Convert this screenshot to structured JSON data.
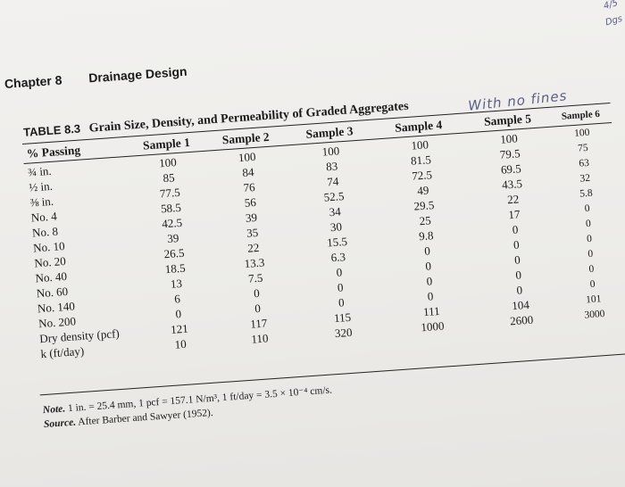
{
  "handwriting": {
    "corner_top": "4/5",
    "corner_bottom": "Dgs",
    "title_annotation": "With no fines"
  },
  "chapter": {
    "number": "Chapter 8",
    "title": "Drainage Design"
  },
  "table": {
    "label": "TABLE 8.3",
    "title": "Grain Size, Density, and Permeability of Graded Aggregates",
    "headers": [
      "% Passing",
      "Sample 1",
      "Sample 2",
      "Sample 3",
      "Sample 4",
      "Sample 5",
      "Sample 6"
    ],
    "rows": [
      [
        "¾ in.",
        "100",
        "100",
        "100",
        "100",
        "100",
        "100"
      ],
      [
        "½ in.",
        "85",
        "84",
        "83",
        "81.5",
        "79.5",
        "75"
      ],
      [
        "⅜ in.",
        "77.5",
        "76",
        "74",
        "72.5",
        "69.5",
        "63"
      ],
      [
        "No. 4",
        "58.5",
        "56",
        "52.5",
        "49",
        "43.5",
        "32"
      ],
      [
        "No. 8",
        "42.5",
        "39",
        "34",
        "29.5",
        "22",
        "5.8"
      ],
      [
        "No. 10",
        "39",
        "35",
        "30",
        "25",
        "17",
        "0"
      ],
      [
        "No. 20",
        "26.5",
        "22",
        "15.5",
        "9.8",
        "0",
        "0"
      ],
      [
        "No. 40",
        "18.5",
        "13.3",
        "6.3",
        "0",
        "0",
        "0"
      ],
      [
        "No. 60",
        "13",
        "7.5",
        "0",
        "0",
        "0",
        "0"
      ],
      [
        "No. 140",
        "6",
        "0",
        "0",
        "0",
        "0",
        "0"
      ],
      [
        "No. 200",
        "0",
        "0",
        "0",
        "0",
        "0",
        "0"
      ],
      [
        "Dry density (pcf)",
        "121",
        "117",
        "115",
        "111",
        "104",
        "101"
      ],
      [
        "k (ft/day)",
        "10",
        "110",
        "320",
        "1000",
        "2600",
        "3000"
      ]
    ]
  },
  "note": {
    "label": "Note.",
    "text": "1 in. = 25.4 mm, 1 pcf = 157.1 N/m³, 1 ft/day = 3.5 × 10⁻⁴ cm/s.",
    "source_label": "Source.",
    "source_text": "After Barber and Sawyer (1952)."
  }
}
